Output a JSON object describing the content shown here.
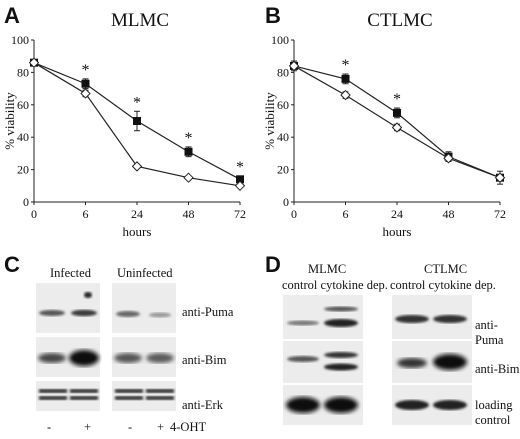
{
  "panels": {
    "A": {
      "letter": "A"
    },
    "B": {
      "letter": "B"
    },
    "C": {
      "letter": "C"
    },
    "D": {
      "letter": "D"
    }
  },
  "chart_data": [
    {
      "type": "line",
      "title": "MLMC",
      "xlabel": "hours",
      "ylabel": "% viability",
      "x": [
        0,
        6,
        24,
        48,
        72
      ],
      "x_tick_labels": [
        "0",
        "6",
        "24",
        "48",
        "72"
      ],
      "y_tick_labels": [
        "0",
        "20",
        "40",
        "60",
        "80",
        "100"
      ],
      "ylim": [
        0,
        100
      ],
      "grid": false,
      "series": [
        {
          "marker": "filled-square",
          "values": [
            86,
            73,
            50,
            31,
            14
          ],
          "errors": [
            2,
            3,
            6,
            3,
            2
          ]
        },
        {
          "marker": "open-diamond",
          "values": [
            86,
            67,
            22,
            15,
            10
          ],
          "errors": [
            1,
            2,
            1,
            1,
            1
          ]
        }
      ],
      "annotations": [
        {
          "x": 6,
          "text": "*"
        },
        {
          "x": 24,
          "text": "*"
        },
        {
          "x": 48,
          "text": "*"
        },
        {
          "x": 72,
          "text": "*"
        }
      ]
    },
    {
      "type": "line",
      "title": "CTLMC",
      "xlabel": "hours",
      "ylabel": "% viability",
      "x": [
        0,
        6,
        24,
        48,
        72
      ],
      "x_tick_labels": [
        "0",
        "6",
        "24",
        "48",
        "72"
      ],
      "y_tick_labels": [
        "0",
        "20",
        "40",
        "60",
        "80",
        "100"
      ],
      "ylim": [
        0,
        100
      ],
      "grid": false,
      "series": [
        {
          "marker": "filled-square",
          "values": [
            84,
            76,
            55,
            28,
            15
          ],
          "errors": [
            3,
            3,
            3,
            3,
            4
          ]
        },
        {
          "marker": "open-diamond",
          "values": [
            84,
            66,
            46,
            27,
            15
          ],
          "errors": [
            1,
            2,
            2,
            2,
            2
          ]
        }
      ],
      "annotations": [
        {
          "x": 6,
          "text": "*"
        },
        {
          "x": 24,
          "text": "*"
        }
      ]
    }
  ],
  "blot_c": {
    "group_infected": "Infected",
    "group_uninfected": "Uninfected",
    "labels": [
      "anti-Puma",
      "anti-Bim",
      "anti-Erk"
    ],
    "lane_labels": [
      "-",
      "+",
      "-",
      "+"
    ],
    "treatment": "4-OHT"
  },
  "blot_d": {
    "group_mlmc": "MLMC",
    "group_ctlmc": "CTLMC",
    "lane_mlmc": "control cytokine dep.",
    "lane_ctlmc": "control cytokine dep.",
    "labels": [
      "anti-Puma",
      "anti-Bim",
      "loading",
      "control"
    ]
  }
}
